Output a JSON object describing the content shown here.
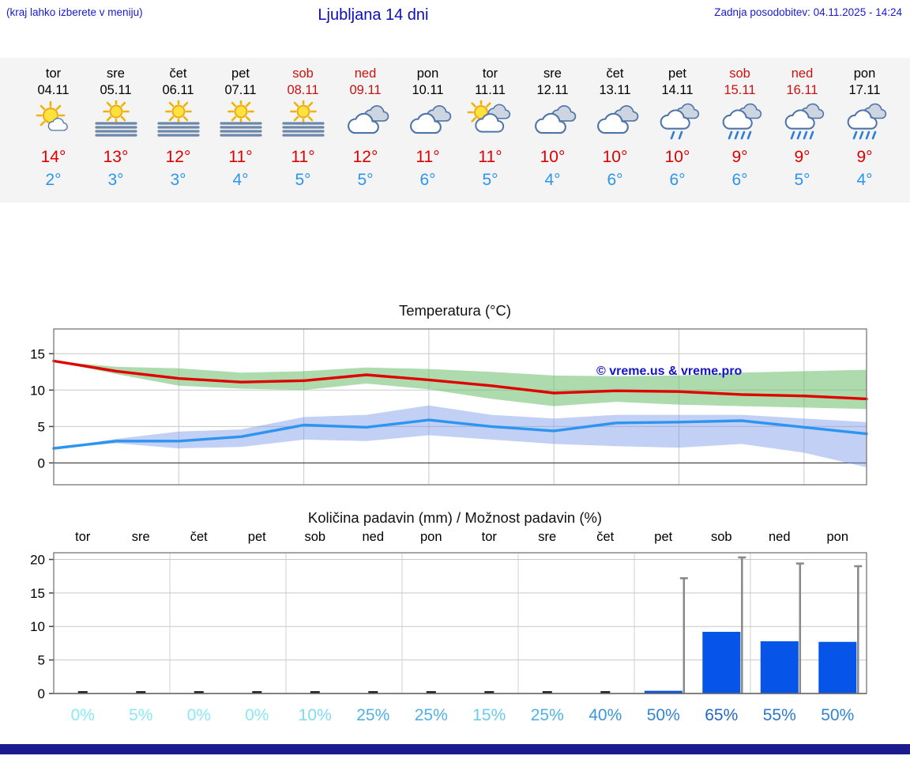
{
  "header": {
    "hint": "(kraj lahko izberete v meniju)",
    "title": "Ljubljana 14 dni",
    "updated": "Zadnja posodobitev: 04.11.2025 - 14:24"
  },
  "colors": {
    "header_blue": "#1a1acc",
    "weekend_red": "#cc1111",
    "tmax_red": "#dd0000",
    "tmin_blue": "#2d95ef",
    "bar_blue": "#0755e8",
    "strip_bg": "#f4f4f4",
    "footer_navy": "#1b1b8e"
  },
  "forecast": {
    "days": [
      {
        "name": "tor",
        "date": "04.11",
        "icon": "mostly-sunny",
        "weekend": false,
        "tmax": "14°",
        "tmin": "2°"
      },
      {
        "name": "sre",
        "date": "05.11",
        "icon": "sun-fog",
        "weekend": false,
        "tmax": "13°",
        "tmin": "3°"
      },
      {
        "name": "čet",
        "date": "06.11",
        "icon": "sun-fog",
        "weekend": false,
        "tmax": "12°",
        "tmin": "3°"
      },
      {
        "name": "pet",
        "date": "07.11",
        "icon": "sun-fog",
        "weekend": false,
        "tmax": "11°",
        "tmin": "4°"
      },
      {
        "name": "sob",
        "date": "08.11",
        "icon": "sun-fog",
        "weekend": true,
        "tmax": "11°",
        "tmin": "5°"
      },
      {
        "name": "ned",
        "date": "09.11",
        "icon": "cloudy",
        "weekend": true,
        "tmax": "12°",
        "tmin": "5°"
      },
      {
        "name": "pon",
        "date": "10.11",
        "icon": "cloudy",
        "weekend": false,
        "tmax": "11°",
        "tmin": "6°"
      },
      {
        "name": "tor",
        "date": "11.11",
        "icon": "partly-cloudy",
        "weekend": false,
        "tmax": "11°",
        "tmin": "5°"
      },
      {
        "name": "sre",
        "date": "12.11",
        "icon": "cloudy",
        "weekend": false,
        "tmax": "10°",
        "tmin": "4°"
      },
      {
        "name": "čet",
        "date": "13.11",
        "icon": "cloudy",
        "weekend": false,
        "tmax": "10°",
        "tmin": "6°"
      },
      {
        "name": "pet",
        "date": "14.11",
        "icon": "rain-light",
        "weekend": false,
        "tmax": "10°",
        "tmin": "6°"
      },
      {
        "name": "sob",
        "date": "15.11",
        "icon": "rain",
        "weekend": true,
        "tmax": "9°",
        "tmin": "6°"
      },
      {
        "name": "ned",
        "date": "16.11",
        "icon": "rain",
        "weekend": true,
        "tmax": "9°",
        "tmin": "5°"
      },
      {
        "name": "pon",
        "date": "17.11",
        "icon": "rain",
        "weekend": false,
        "tmax": "9°",
        "tmin": "4°"
      }
    ]
  },
  "chart_data": [
    {
      "type": "line",
      "title": "Temperatura (°C)",
      "categories": [
        "tor",
        "sre",
        "čet",
        "pet",
        "sob",
        "ned",
        "pon",
        "tor",
        "sre",
        "čet",
        "pet",
        "sob",
        "ned",
        "pon"
      ],
      "ylim": [
        -3,
        18.4
      ],
      "yticks": [
        0,
        5,
        10,
        15
      ],
      "grid": true,
      "legend_position": "none",
      "watermark": "© vreme.us & vreme.pro",
      "series": [
        {
          "name": "max-temp",
          "color": "#e00000",
          "values": [
            14,
            12.6,
            11.6,
            11.1,
            11.3,
            12.1,
            11.4,
            10.6,
            9.6,
            9.9,
            9.8,
            9.4,
            9.2,
            8.8
          ]
        },
        {
          "name": "min-temp",
          "color": "#2d95ef",
          "values": [
            2,
            3,
            3,
            3.6,
            5.2,
            4.9,
            5.9,
            5,
            4.4,
            5.5,
            5.6,
            5.8,
            4.9,
            4
          ]
        }
      ],
      "bands": [
        {
          "name": "max-temp-range",
          "color": "rgba(105,190,105,0.55)",
          "upper": [
            14,
            13.2,
            13,
            12.4,
            12.6,
            13.1,
            12.9,
            12.5,
            12,
            11.9,
            12,
            12.4,
            12.6,
            12.8
          ],
          "lower": [
            14,
            12.2,
            10.6,
            10.2,
            10,
            10.9,
            10.1,
            8.8,
            7.8,
            8.4,
            8,
            7.8,
            7.6,
            7.4
          ]
        },
        {
          "name": "min-temp-range",
          "color": "rgba(120,150,235,0.45)",
          "upper": [
            2,
            3.3,
            4.3,
            4.6,
            6.3,
            6.6,
            7.9,
            6.6,
            6.1,
            6.6,
            6.6,
            6.6,
            6.1,
            5.6
          ],
          "lower": [
            2,
            2.7,
            2,
            2.2,
            3.2,
            3,
            3.8,
            3.2,
            2.6,
            2.3,
            2.1,
            2.6,
            1.4,
            -0.6
          ]
        }
      ]
    },
    {
      "type": "bar",
      "title": "Količina padavin (mm) / Možnost padavin (%)",
      "categories": [
        "tor",
        "sre",
        "čet",
        "pet",
        "sob",
        "ned",
        "pon",
        "tor",
        "sre",
        "čet",
        "pet",
        "sob",
        "ned",
        "pon"
      ],
      "values": [
        0,
        0,
        0,
        0,
        0,
        0,
        0,
        0,
        0,
        0,
        0.4,
        9.2,
        7.8,
        7.7
      ],
      "whisker_max": [
        0,
        0,
        0,
        0,
        0,
        0,
        0,
        0,
        0,
        0,
        17.2,
        20.3,
        19.4,
        19
      ],
      "ylim": [
        0,
        21
      ],
      "yticks": [
        0,
        5,
        10,
        15,
        20
      ],
      "bar_color": "#0755e8",
      "probabilities": [
        {
          "label": "0%",
          "color": "#8ae9f2"
        },
        {
          "label": "5%",
          "color": "#8ae9f2"
        },
        {
          "label": "0%",
          "color": "#8ae9f2"
        },
        {
          "label": "0%",
          "color": "#8ae9f2"
        },
        {
          "label": "10%",
          "color": "#7fdcf0"
        },
        {
          "label": "25%",
          "color": "#4fb1e4"
        },
        {
          "label": "25%",
          "color": "#4fb1e4"
        },
        {
          "label": "15%",
          "color": "#68cdeb"
        },
        {
          "label": "25%",
          "color": "#4fb1e4"
        },
        {
          "label": "40%",
          "color": "#3b96da"
        },
        {
          "label": "50%",
          "color": "#2f85d2"
        },
        {
          "label": "65%",
          "color": "#2269c5"
        },
        {
          "label": "55%",
          "color": "#2a78cc"
        },
        {
          "label": "50%",
          "color": "#2f85d2"
        }
      ]
    }
  ]
}
